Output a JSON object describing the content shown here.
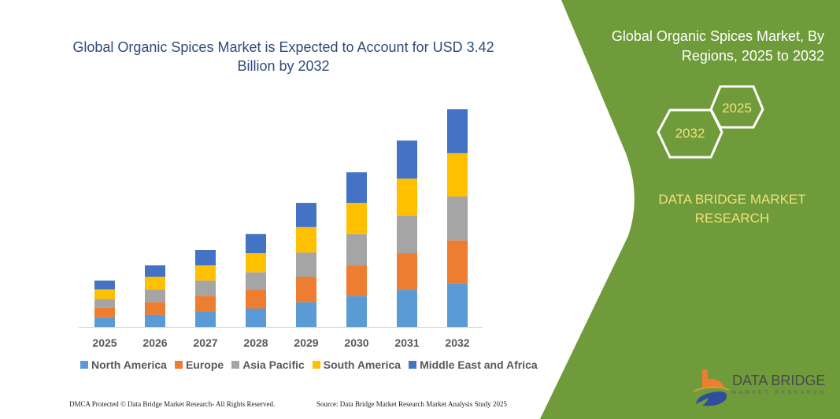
{
  "chart_data": {
    "type": "bar",
    "stacked": true,
    "title": "Global Organic Spices Market is Expected to Account for USD 3.42 Billion by 2032",
    "categories": [
      "2025",
      "2026",
      "2027",
      "2028",
      "2029",
      "2030",
      "2031",
      "2032"
    ],
    "series": [
      {
        "name": "North America",
        "color": "#5b9bd5",
        "values": [
          0.15,
          0.19,
          0.24,
          0.29,
          0.39,
          0.49,
          0.58,
          0.68
        ]
      },
      {
        "name": "Europe",
        "color": "#ed7d31",
        "values": [
          0.15,
          0.2,
          0.25,
          0.29,
          0.4,
          0.48,
          0.58,
          0.68
        ]
      },
      {
        "name": "Asia Pacific",
        "color": "#a5a5a5",
        "values": [
          0.14,
          0.2,
          0.24,
          0.28,
          0.38,
          0.49,
          0.59,
          0.69
        ]
      },
      {
        "name": "South America",
        "color": "#ffc000",
        "values": [
          0.15,
          0.2,
          0.24,
          0.3,
          0.4,
          0.49,
          0.58,
          0.68
        ]
      },
      {
        "name": "Middle East and Africa",
        "color": "#4472c4",
        "values": [
          0.14,
          0.18,
          0.24,
          0.3,
          0.38,
          0.48,
          0.6,
          0.69
        ]
      }
    ],
    "total_2032": 3.42,
    "units": "USD Billion",
    "grid": false,
    "y_axis_shown": false,
    "legend_position": "bottom"
  },
  "side_panel": {
    "title": "Global Organic Spices Market, By Regions, 2025 to 2032",
    "hex_start": "2025",
    "hex_end": "2032",
    "brand": "DATA BRIDGE MARKET RESEARCH",
    "logo_text": "DATA BRIDGE",
    "logo_subtext": "MARKET RESEARCH",
    "green": "#6f9b3b"
  },
  "footer": {
    "left": "DMCA Protected © Data Bridge Market Research- All Rights Reserved.",
    "right": "Source: Data Bridge Market Research Market Analysis Study 2025"
  }
}
